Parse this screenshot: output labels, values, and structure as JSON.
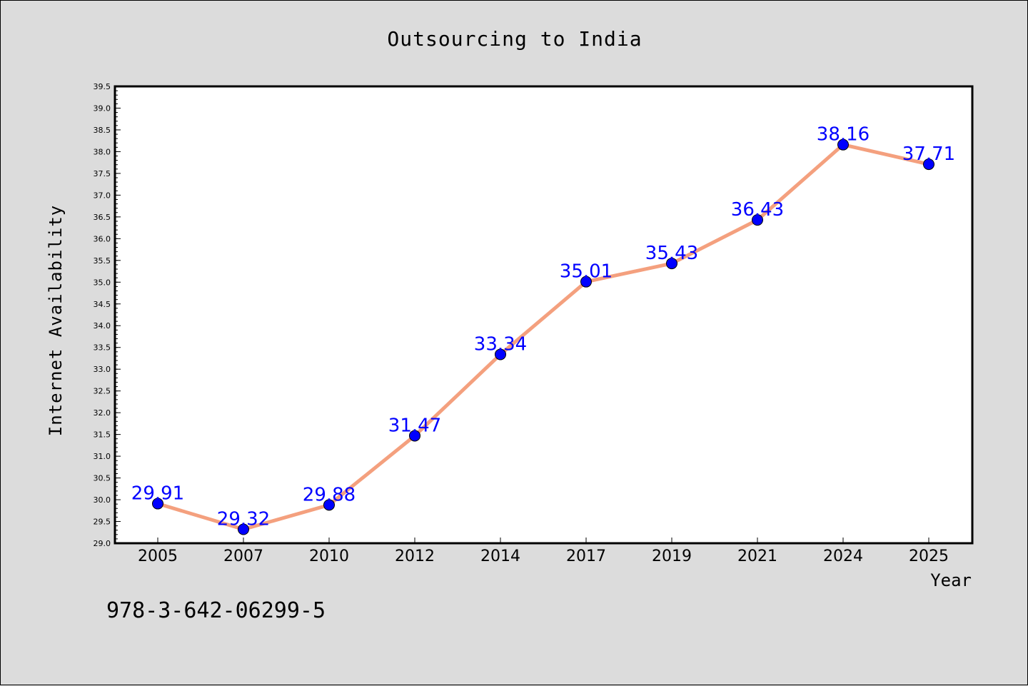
{
  "footer": {
    "isbn": "978-3-642-06299-5"
  },
  "colors": {
    "line": "#f4a07e",
    "marker": "#0000ff",
    "label": "#0000ff",
    "background": "#dcdcdc",
    "plot_background": "#ffffff"
  },
  "chart_data": {
    "type": "line",
    "title": "Outsourcing to India",
    "xlabel": "Year",
    "ylabel": "Internet Availability",
    "categories": [
      "2005",
      "2007",
      "2010",
      "2012",
      "2014",
      "2017",
      "2019",
      "2021",
      "2024",
      "2025"
    ],
    "series": [
      {
        "values": [
          29.91,
          29.32,
          29.88,
          31.47,
          33.34,
          35.01,
          35.43,
          36.43,
          38.16,
          37.71
        ]
      }
    ],
    "data_labels": [
      "29.91",
      "29.32",
      "29.88",
      "31.47",
      "33.34",
      "35.01",
      "35.43",
      "36.43",
      "38.16",
      "37.71"
    ],
    "ylim": [
      29.0,
      39.5
    ],
    "yticks": [
      "29.0",
      "29.5",
      "30.0",
      "30.5",
      "31.0",
      "31.5",
      "32.0",
      "32.5",
      "33.0",
      "33.5",
      "34.0",
      "34.5",
      "35.0",
      "35.5",
      "36.0",
      "36.5",
      "37.0",
      "37.5",
      "38.0",
      "38.5",
      "39.0",
      "39.5"
    ],
    "grid": false,
    "legend": "none"
  }
}
